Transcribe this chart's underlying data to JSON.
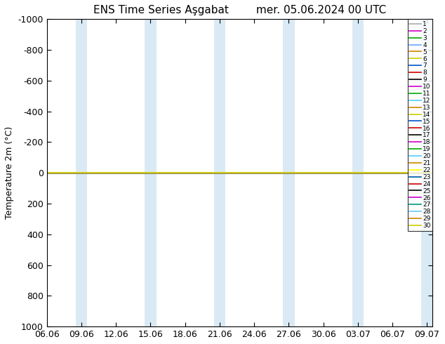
{
  "title_left": "ENS Time Series Aşgabat",
  "title_right": "mer. 05.06.2024 00 UTC",
  "ylabel": "Temperature 2m (°C)",
  "ylim": [
    -1000,
    1000
  ],
  "yticks": [
    -1000,
    -800,
    -600,
    -400,
    -200,
    0,
    200,
    400,
    600,
    800,
    1000
  ],
  "ytick_labels": [
    "-1000",
    "-800",
    "-600",
    "-400",
    "-200",
    "0",
    "200",
    "400",
    "600",
    "800",
    "1000"
  ],
  "x_ticks": [
    "06.06",
    "09.06",
    "12.06",
    "15.06",
    "18.06",
    "21.06",
    "24.06",
    "27.06",
    "30.06",
    "03.07",
    "06.07",
    "09.07"
  ],
  "x_tick_vals": [
    0,
    3,
    6,
    9,
    12,
    15,
    18,
    21,
    24,
    27,
    30,
    33
  ],
  "shade_pairs": [
    [
      2.5,
      3.5
    ],
    [
      8.5,
      9.5
    ],
    [
      14.5,
      15.5
    ],
    [
      20.5,
      21.5
    ],
    [
      26.5,
      27.5
    ],
    [
      32.5,
      33.5
    ]
  ],
  "shade_color": "#daeaf5",
  "member_colors": [
    "#aaaaaa",
    "#cc00cc",
    "#00aa00",
    "#66aaff",
    "#cc8800",
    "#cccc00",
    "#0055cc",
    "#cc0000",
    "#000000",
    "#cc00cc",
    "#00aa00",
    "#55ccff",
    "#cc8800",
    "#cccc00",
    "#0055cc",
    "#cc0000",
    "#000000",
    "#cc00cc",
    "#00aa00",
    "#55ccff",
    "#cc8800",
    "#ffff00",
    "#0055aa",
    "#cc0000",
    "#000000",
    "#cc00cc",
    "#009977",
    "#66ccff",
    "#cc8800",
    "#cccc00"
  ],
  "member_values": [
    0,
    0,
    0,
    0,
    0,
    0,
    0,
    0,
    0,
    0,
    0,
    0,
    0,
    0,
    0,
    0,
    0,
    0,
    0,
    0,
    0,
    0,
    0,
    0,
    0,
    0,
    0,
    0,
    0,
    0
  ],
  "bg_color": "#ffffff",
  "font_size_title": 11,
  "font_size_axis": 9,
  "font_size_legend": 6.5,
  "xlim": [
    0,
    33.5
  ]
}
